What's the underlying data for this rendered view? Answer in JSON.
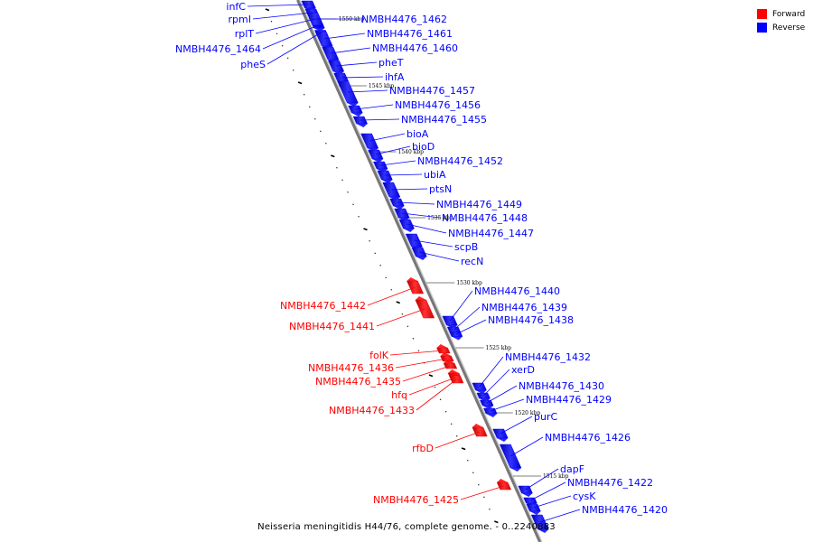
{
  "caption": "Neisseria meningitidis H44/76, complete genome. - 0..2240883",
  "legend": [
    {
      "label": "Forward",
      "color": "#ff0000"
    },
    {
      "label": "Reverse",
      "color": "#0000ff"
    }
  ],
  "colors": {
    "forward": "#ff0000",
    "reverse": "#0000ff",
    "backbone": "#777777"
  },
  "ticks": [
    "1550 kbp",
    "1545 kbp",
    "1540 kbp",
    "1535 kbp",
    "1530 kbp",
    "1525 kbp",
    "1520 kbp",
    "1515 kbp"
  ],
  "genes": [
    {
      "name": "infC",
      "strand": "reverse"
    },
    {
      "name": "rpmI",
      "strand": "reverse"
    },
    {
      "name": "rplT",
      "strand": "reverse"
    },
    {
      "name": "NMBH4476_1464",
      "strand": "reverse"
    },
    {
      "name": "pheS",
      "strand": "reverse"
    },
    {
      "name": "NMBH4476_1462",
      "strand": "reverse"
    },
    {
      "name": "NMBH4476_1461",
      "strand": "reverse"
    },
    {
      "name": "NMBH4476_1460",
      "strand": "reverse"
    },
    {
      "name": "pheT",
      "strand": "reverse"
    },
    {
      "name": "ihfA",
      "strand": "reverse"
    },
    {
      "name": "NMBH4476_1457",
      "strand": "reverse"
    },
    {
      "name": "NMBH4476_1456",
      "strand": "reverse"
    },
    {
      "name": "NMBH4476_1455",
      "strand": "reverse"
    },
    {
      "name": "bioA",
      "strand": "reverse"
    },
    {
      "name": "bioD",
      "strand": "reverse"
    },
    {
      "name": "NMBH4476_1452",
      "strand": "reverse"
    },
    {
      "name": "ubiA",
      "strand": "reverse"
    },
    {
      "name": "ptsN",
      "strand": "reverse"
    },
    {
      "name": "NMBH4476_1449",
      "strand": "reverse"
    },
    {
      "name": "NMBH4476_1448",
      "strand": "reverse"
    },
    {
      "name": "NMBH4476_1447",
      "strand": "reverse"
    },
    {
      "name": "scpB",
      "strand": "reverse"
    },
    {
      "name": "recN",
      "strand": "reverse"
    },
    {
      "name": "NMBH4476_1442",
      "strand": "forward"
    },
    {
      "name": "NMBH4476_1441",
      "strand": "forward"
    },
    {
      "name": "NMBH4476_1440",
      "strand": "reverse"
    },
    {
      "name": "NMBH4476_1439",
      "strand": "reverse"
    },
    {
      "name": "NMBH4476_1438",
      "strand": "reverse"
    },
    {
      "name": "folK",
      "strand": "forward"
    },
    {
      "name": "NMBH4476_1436",
      "strand": "forward"
    },
    {
      "name": "NMBH4476_1435",
      "strand": "forward"
    },
    {
      "name": "hfq",
      "strand": "forward"
    },
    {
      "name": "NMBH4476_1433",
      "strand": "forward"
    },
    {
      "name": "NMBH4476_1432",
      "strand": "reverse"
    },
    {
      "name": "xerD",
      "strand": "reverse"
    },
    {
      "name": "NMBH4476_1430",
      "strand": "reverse"
    },
    {
      "name": "NMBH4476_1429",
      "strand": "reverse"
    },
    {
      "name": "purC",
      "strand": "reverse"
    },
    {
      "name": "rfbD",
      "strand": "forward"
    },
    {
      "name": "NMBH4476_1426",
      "strand": "reverse"
    },
    {
      "name": "NMBH4476_1425",
      "strand": "forward"
    },
    {
      "name": "dapF",
      "strand": "reverse"
    },
    {
      "name": "NMBH4476_1422",
      "strand": "reverse"
    },
    {
      "name": "cysK",
      "strand": "reverse"
    },
    {
      "name": "NMBH4476_1420",
      "strand": "reverse"
    }
  ]
}
